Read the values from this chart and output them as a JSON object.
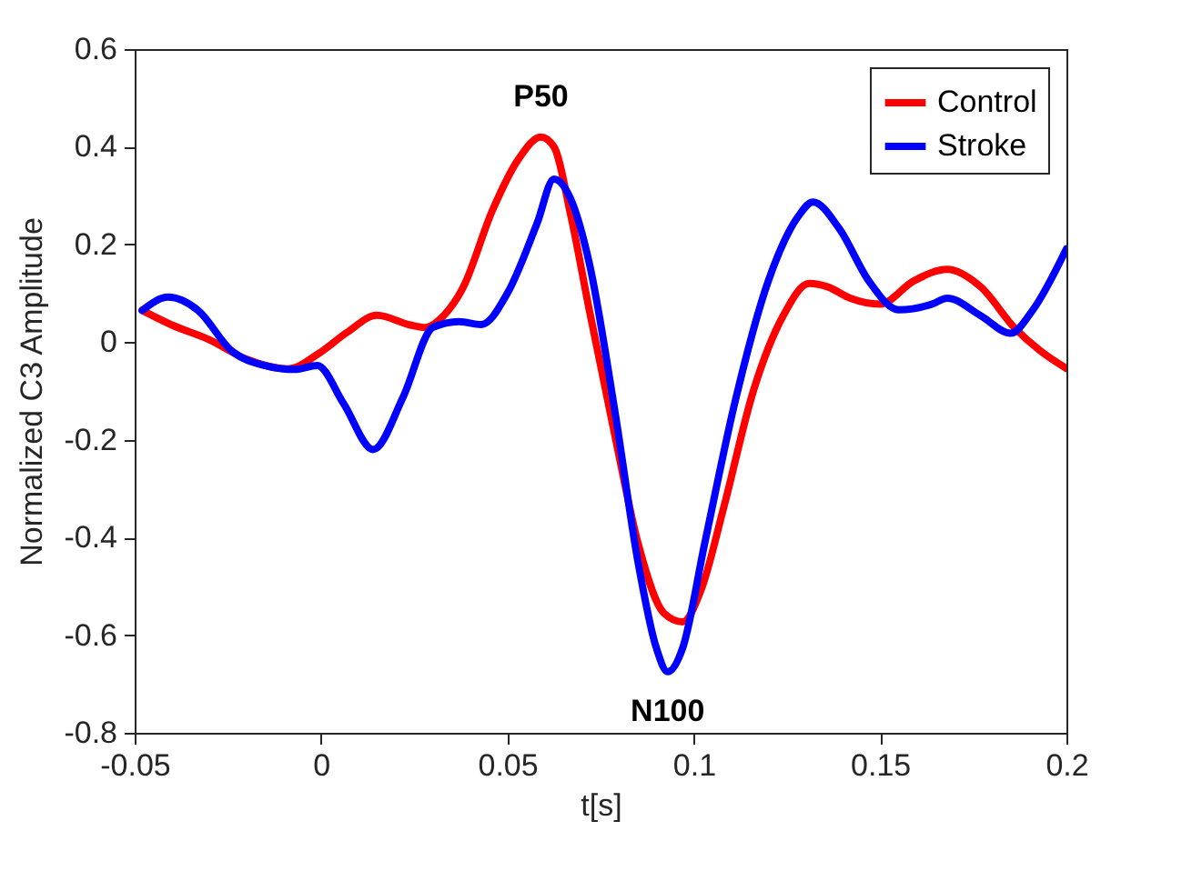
{
  "chart_data": {
    "type": "line",
    "xlabel": "t[s]",
    "ylabel": "Normalized C3 Amplitude",
    "xlim": [
      -0.05,
      0.2
    ],
    "xticks": [
      -0.05,
      0,
      0.05,
      0.1,
      0.15,
      0.2
    ],
    "ylim": [
      -0.8,
      0.6
    ],
    "yticks": [
      -0.8,
      -0.6,
      -0.4,
      -0.2,
      0,
      0.2,
      0.4,
      0.6
    ],
    "grid": false,
    "legend": "top right",
    "line_style": "solid",
    "annotations": [
      {
        "text": "P50",
        "x": 0.059,
        "y": 0.42
      },
      {
        "text": "N100",
        "x": 0.093,
        "y": -0.675
      }
    ],
    "series": [
      {
        "name": "Control",
        "color": "#ff0000",
        "x": [
          -0.048,
          -0.04,
          -0.03,
          -0.02,
          -0.009,
          0,
          0.007,
          0.015,
          0.024,
          0.028,
          0.033,
          0.038,
          0.046,
          0.053,
          0.059,
          0.0625,
          0.067,
          0.072,
          0.079,
          0.085,
          0.092,
          0.097,
          0.102,
          0.108,
          0.116,
          0.124,
          0.131,
          0.136,
          0.142,
          0.15,
          0.159,
          0.168,
          0.177,
          0.186,
          0.193,
          0.2
        ],
        "values": [
          0.065,
          0.035,
          0.005,
          -0.035,
          -0.055,
          -0.02,
          0.02,
          0.055,
          0.035,
          0.03,
          0.055,
          0.11,
          0.27,
          0.375,
          0.42,
          0.4,
          0.26,
          0.065,
          -0.197,
          -0.41,
          -0.555,
          -0.573,
          -0.507,
          -0.34,
          -0.1,
          0.054,
          0.12,
          0.113,
          0.09,
          0.078,
          0.125,
          0.149,
          0.113,
          0.03,
          -0.018,
          -0.054
        ]
      },
      {
        "name": "Stroke",
        "color": "#0000ff",
        "x": [
          -0.048,
          -0.041,
          -0.033,
          -0.024,
          -0.015,
          -0.007,
          -0.001,
          0.006,
          0.014,
          0.022,
          0.03,
          0.037,
          0.043,
          0.05,
          0.058,
          0.0625,
          0.067,
          0.072,
          0.079,
          0.085,
          0.09,
          0.093,
          0.097,
          0.103,
          0.111,
          0.12,
          0.128,
          0.132,
          0.139,
          0.147,
          0.155,
          0.164,
          0.168,
          0.177,
          0.185,
          0.191,
          0.2
        ],
        "values": [
          0.065,
          0.092,
          0.065,
          -0.018,
          -0.048,
          -0.056,
          -0.048,
          -0.125,
          -0.22,
          -0.113,
          0.03,
          0.042,
          0.036,
          0.1,
          0.244,
          0.334,
          0.293,
          0.161,
          -0.149,
          -0.448,
          -0.627,
          -0.675,
          -0.627,
          -0.41,
          -0.125,
          0.125,
          0.257,
          0.287,
          0.233,
          0.125,
          0.066,
          0.078,
          0.09,
          0.054,
          0.018,
          0.066,
          0.191
        ]
      }
    ]
  }
}
